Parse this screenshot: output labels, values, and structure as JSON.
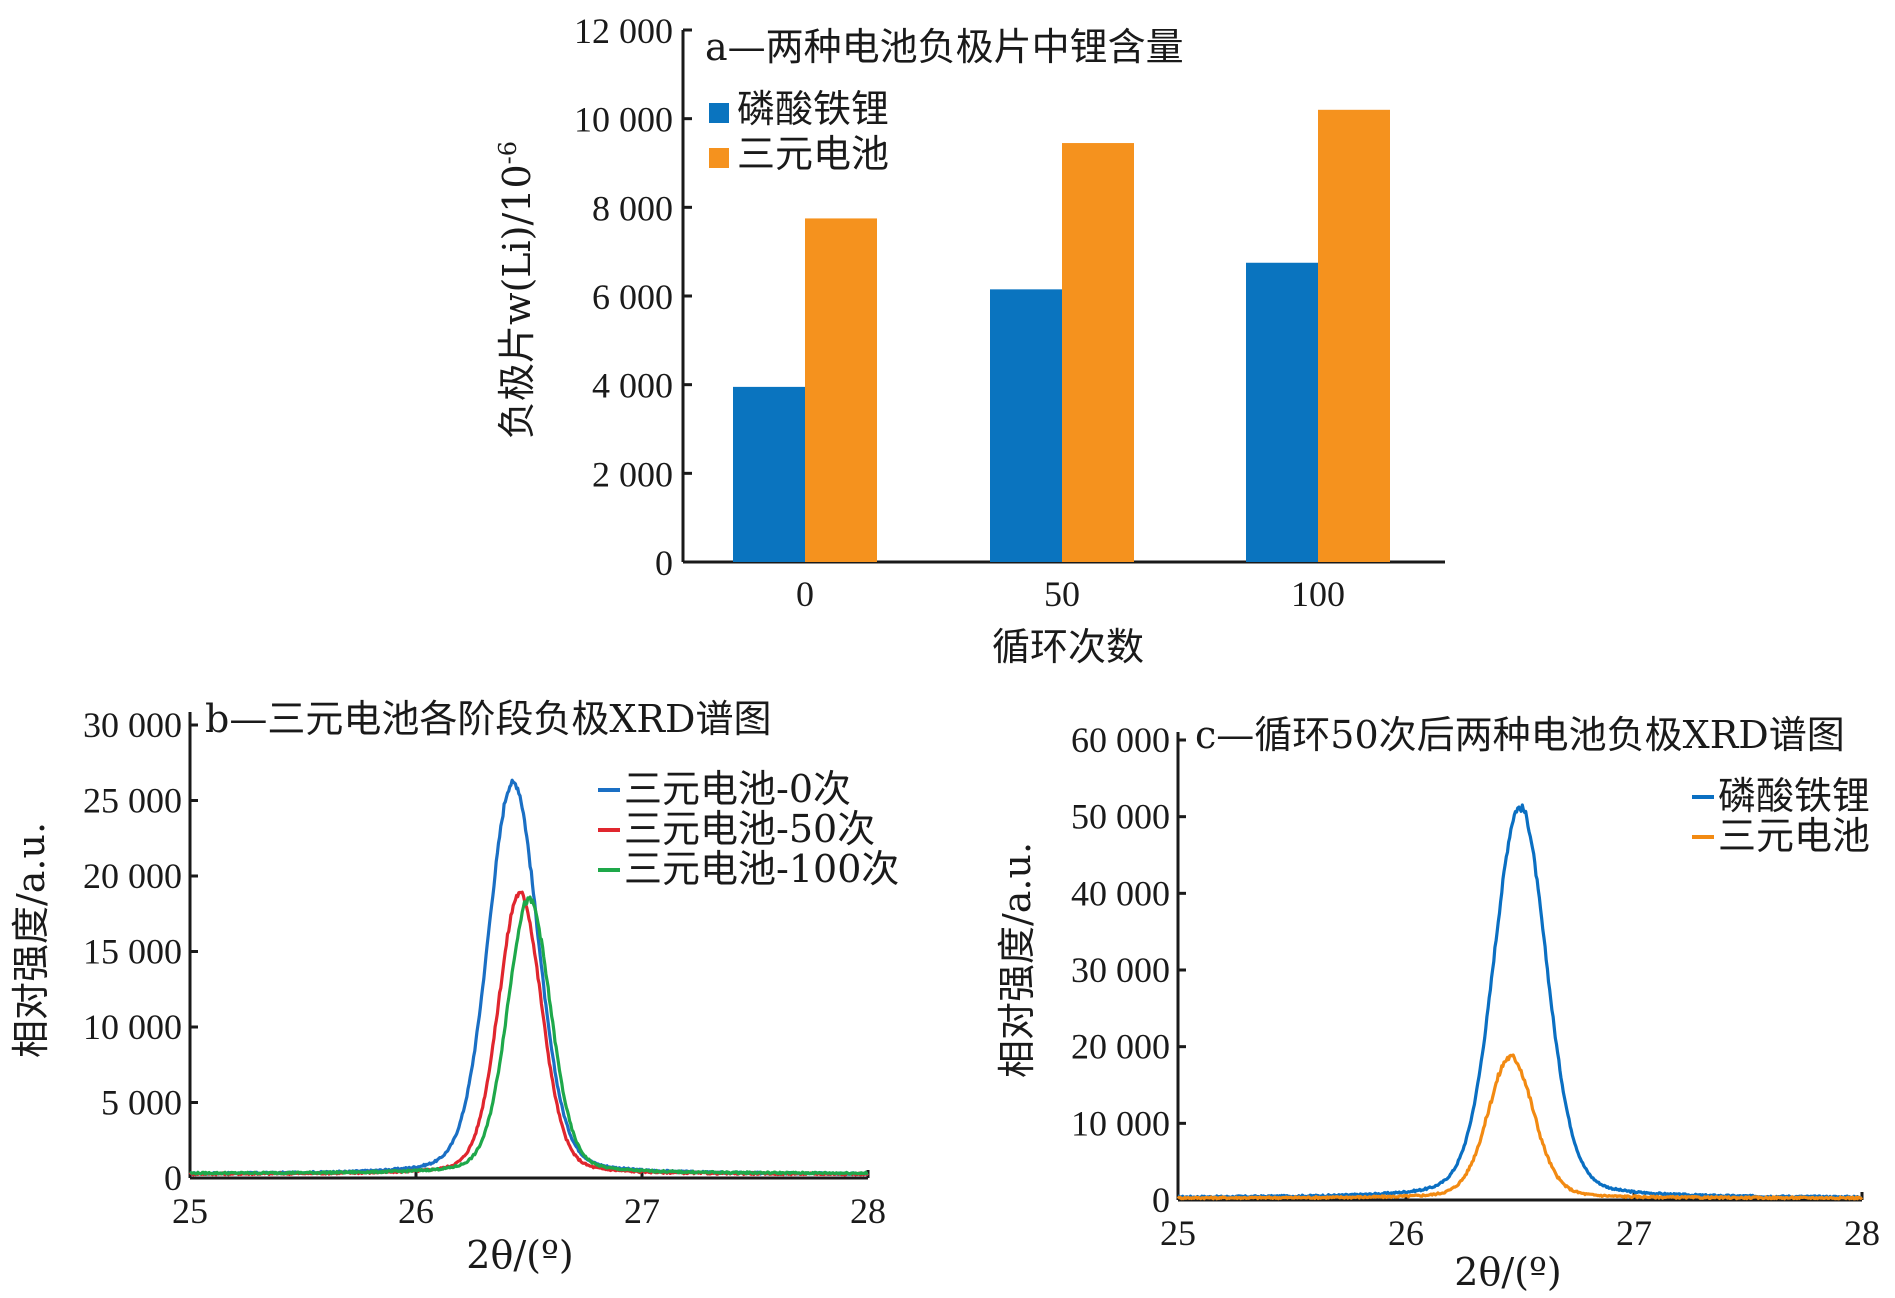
{
  "chart_data": [
    {
      "id": "a",
      "type": "bar",
      "title": "a—两种电池负极片中锂含量",
      "xlabel": "循环次数",
      "ylabel": "负极片w(Li)/10",
      "ylabel_sup": "-6",
      "categories": [
        "0",
        "50",
        "100"
      ],
      "ylim": [
        0,
        12000
      ],
      "yticks": [
        0,
        2000,
        4000,
        6000,
        8000,
        10000,
        12000
      ],
      "ytick_labels": [
        "0",
        "2 000",
        "4 000",
        "6 000",
        "8 000",
        "10 000",
        "12 000"
      ],
      "legend_position": "top-left",
      "series": [
        {
          "name": "磷酸铁锂",
          "color": "#0a74bf",
          "values": [
            3950,
            6150,
            6750
          ]
        },
        {
          "name": "三元电池",
          "color": "#f5921e",
          "values": [
            7750,
            9450,
            10200
          ]
        }
      ]
    },
    {
      "id": "b",
      "type": "line",
      "title": "b—三元电池各阶段负极XRD谱图",
      "xlabel": "2θ/(º)",
      "ylabel": "相对强度/a.u.",
      "xlim": [
        25,
        28
      ],
      "ylim": [
        0,
        30000
      ],
      "xticks": [
        25,
        26,
        27,
        28
      ],
      "xtick_labels": [
        "25",
        "26",
        "27",
        "28"
      ],
      "yticks": [
        0,
        5000,
        10000,
        15000,
        20000,
        25000,
        30000
      ],
      "ytick_labels": [
        "0",
        "5 000",
        "10 000",
        "15 000",
        "20 000",
        "25 000",
        "30 000"
      ],
      "legend_position": "top-right",
      "series": [
        {
          "name": "三元电池-0次",
          "color": "#1a6fc4",
          "peak": 27500,
          "center": 26.43,
          "width": 0.11,
          "baseline": 250
        },
        {
          "name": "三元电池-50次",
          "color": "#e0262e",
          "peak": 19700,
          "center": 26.46,
          "width": 0.095,
          "baseline": 250
        },
        {
          "name": "三元电池-100次",
          "color": "#1ea84a",
          "peak": 19200,
          "center": 26.5,
          "width": 0.095,
          "baseline": 300
        }
      ]
    },
    {
      "id": "c",
      "type": "line",
      "title": "c—循环50次后两种电池负极XRD谱图",
      "xlabel": "2θ/(º)",
      "ylabel": "相对强度/a.u.",
      "xlim": [
        25,
        28
      ],
      "ylim": [
        0,
        60000
      ],
      "xticks": [
        25,
        26,
        27,
        28
      ],
      "xtick_labels": [
        "25",
        "26",
        "27",
        "28"
      ],
      "yticks": [
        0,
        10000,
        20000,
        30000,
        40000,
        50000,
        60000
      ],
      "ytick_labels": [
        "0",
        "10 000",
        "20 000",
        "30 000",
        "40 000",
        "50 000",
        "60 000"
      ],
      "legend_position": "top-right",
      "series": [
        {
          "name": "磷酸铁锂",
          "color": "#0a6fc2",
          "peak": 54000,
          "center": 26.5,
          "width": 0.115,
          "baseline": 300
        },
        {
          "name": "三元电池",
          "color": "#f28a12",
          "peak": 19500,
          "center": 26.46,
          "width": 0.1,
          "baseline": 250
        }
      ]
    }
  ]
}
